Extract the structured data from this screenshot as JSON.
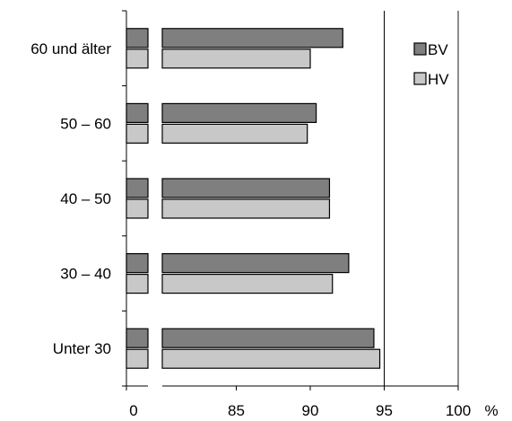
{
  "chart_data": {
    "type": "bar",
    "orientation": "horizontal",
    "categories": [
      "60 und älter",
      "50 – 60",
      "40 – 50",
      "30 – 40",
      "Unter 30"
    ],
    "series": [
      {
        "name": "BV",
        "color": "#7f7f7f",
        "values": [
          92.2,
          90.4,
          91.3,
          92.6,
          94.3
        ]
      },
      {
        "name": "HV",
        "color": "#c8c8c8",
        "values": [
          90.0,
          89.8,
          91.3,
          91.5,
          94.7
        ]
      }
    ],
    "x_axis": {
      "scale": "broken",
      "break_between": [
        0,
        80
      ],
      "visible_range": [
        80,
        100
      ],
      "tick_labels": [
        "0",
        "85",
        "90",
        "95",
        "100"
      ],
      "unit": "%"
    },
    "gridlines": [
      95
    ],
    "legend": {
      "placement": "top-right",
      "entries": [
        "BV",
        "HV"
      ]
    },
    "title": "",
    "xlabel": "",
    "ylabel": ""
  }
}
